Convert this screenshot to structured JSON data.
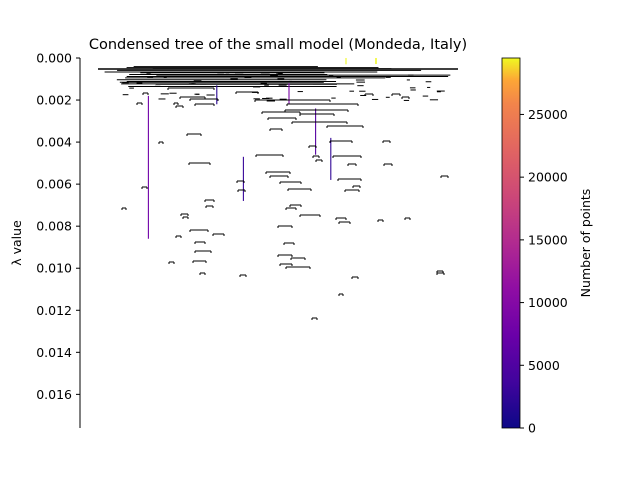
{
  "chart_data": {
    "type": "dendrogram",
    "title": "Condensed tree of the small model (Mondeda, Italy)",
    "ylabel": "λ value",
    "ylim": [
      0,
      0.0176
    ],
    "y_ticks": [
      0.0,
      0.002,
      0.004,
      0.006,
      0.008,
      0.01,
      0.012,
      0.014,
      0.016
    ],
    "y_tick_labels": [
      "0.000",
      "0.002",
      "0.004",
      "0.006",
      "0.008",
      "0.010",
      "0.012",
      "0.014",
      "0.016"
    ],
    "colorbar": {
      "label": "Number of points",
      "colormap": "plasma",
      "range": [
        0,
        29500
      ],
      "ticks": [
        0,
        5000,
        10000,
        15000,
        20000,
        25000
      ],
      "tick_labels": [
        "0",
        "5000",
        "10000",
        "15000",
        "20000",
        "25000"
      ]
    },
    "notes": "Hierarchical condensed tree; nodes are shown as horizontal bars (cluster splits) and vertical lines (cluster lifetimes), colored by number of points. Root at λ≈0 contains ~29500 points.",
    "lambda_samples": [
      {
        "x_frac": 0.7,
        "from": 0.0,
        "to": 0.0003,
        "points": 29500
      },
      {
        "x_frac": 0.18,
        "from": 0.0018,
        "to": 0.0086,
        "points": 8000
      },
      {
        "x_frac": 0.55,
        "from": 0.0012,
        "to": 0.0022,
        "points": 9000
      },
      {
        "x_frac": 0.62,
        "from": 0.0024,
        "to": 0.0046,
        "points": 5500
      },
      {
        "x_frac": 0.43,
        "from": 0.0047,
        "to": 0.0068,
        "points": 3000
      },
      {
        "x_frac": 0.66,
        "from": 0.0038,
        "to": 0.0058,
        "points": 2500
      },
      {
        "x_frac": 0.36,
        "from": 0.0013,
        "to": 0.0022,
        "points": 2000
      }
    ]
  }
}
